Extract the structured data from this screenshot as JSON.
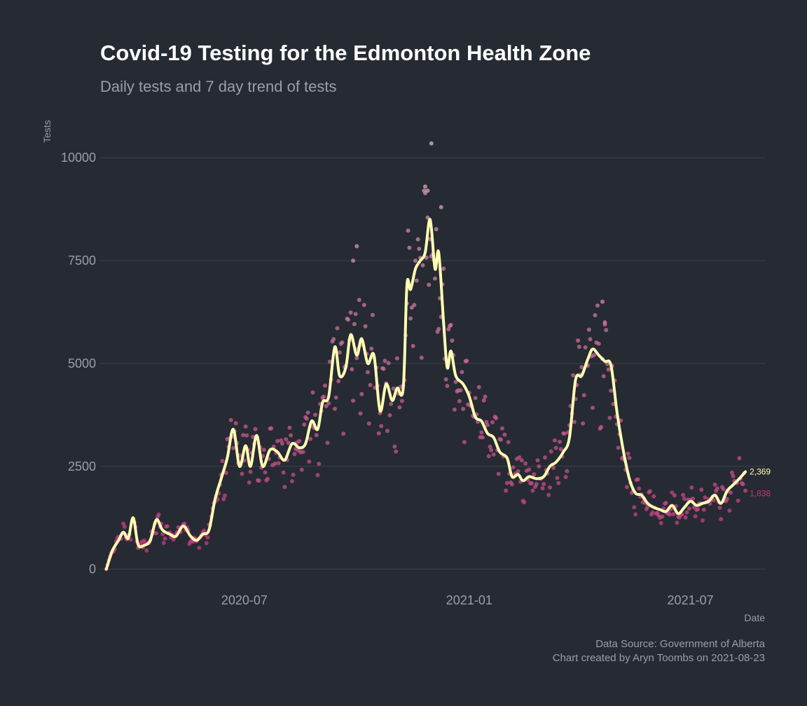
{
  "chart_data": {
    "type": "scatter",
    "title": "Covid-19 Testing for the Edmonton Health Zone",
    "subtitle": "Daily tests and 7 day trend of tests",
    "xlabel": "Date",
    "ylabel": "Tests",
    "x_range": [
      "2020-03-05",
      "2021-08-31"
    ],
    "y_range": [
      -500,
      10600
    ],
    "x_ticks": [
      "2020-07-01",
      "2021-01-01",
      "2021-07-01"
    ],
    "x_tick_labels": [
      "2020-07",
      "2021-01",
      "2021-07"
    ],
    "y_ticks": [
      0,
      2500,
      5000,
      7500,
      10000
    ],
    "y_tick_labels": [
      "0",
      "2500",
      "5000",
      "7500",
      "10000"
    ],
    "grid": "horizontal",
    "caption_lines": [
      "Data Source: Government of Alberta",
      "Chart created by Aryn Toombs on 2021-08-23"
    ],
    "colors": {
      "background": "#262a33",
      "points_low": "#c8367e",
      "points_high": "#d5a8bc",
      "trend": "#ffffb3",
      "text_muted": "#9a9ea6"
    },
    "trend_anchors": [
      [
        "2020-03-10",
        0
      ],
      [
        "2020-03-15",
        450
      ],
      [
        "2020-03-20",
        700
      ],
      [
        "2020-03-24",
        900
      ],
      [
        "2020-03-28",
        750
      ],
      [
        "2020-04-01",
        1250
      ],
      [
        "2020-04-05",
        600
      ],
      [
        "2020-04-10",
        580
      ],
      [
        "2020-04-15",
        700
      ],
      [
        "2020-04-20",
        1200
      ],
      [
        "2020-04-25",
        950
      ],
      [
        "2020-05-01",
        850
      ],
      [
        "2020-05-06",
        800
      ],
      [
        "2020-05-12",
        1050
      ],
      [
        "2020-05-18",
        800
      ],
      [
        "2020-05-23",
        700
      ],
      [
        "2020-05-28",
        850
      ],
      [
        "2020-06-02",
        950
      ],
      [
        "2020-06-07",
        1700
      ],
      [
        "2020-06-12",
        2200
      ],
      [
        "2020-06-17",
        2700
      ],
      [
        "2020-06-22",
        3400
      ],
      [
        "2020-06-27",
        2500
      ],
      [
        "2020-07-02",
        3000
      ],
      [
        "2020-07-06",
        2500
      ],
      [
        "2020-07-11",
        3250
      ],
      [
        "2020-07-16",
        2500
      ],
      [
        "2020-07-22",
        2900
      ],
      [
        "2020-07-28",
        2850
      ],
      [
        "2020-08-03",
        2650
      ],
      [
        "2020-08-09",
        3050
      ],
      [
        "2020-08-15",
        2950
      ],
      [
        "2020-08-20",
        3050
      ],
      [
        "2020-08-25",
        3600
      ],
      [
        "2020-08-30",
        3400
      ],
      [
        "2020-09-03",
        4050
      ],
      [
        "2020-09-08",
        4200
      ],
      [
        "2020-09-13",
        5400
      ],
      [
        "2020-09-17",
        4700
      ],
      [
        "2020-09-22",
        4900
      ],
      [
        "2020-09-26",
        5700
      ],
      [
        "2020-10-01",
        5200
      ],
      [
        "2020-10-05",
        5600
      ],
      [
        "2020-10-10",
        5000
      ],
      [
        "2020-10-15",
        5200
      ],
      [
        "2020-10-20",
        3850
      ],
      [
        "2020-10-25",
        4500
      ],
      [
        "2020-10-30",
        4100
      ],
      [
        "2020-11-03",
        4400
      ],
      [
        "2020-11-08",
        4400
      ],
      [
        "2020-11-11",
        6900
      ],
      [
        "2020-11-14",
        6800
      ],
      [
        "2020-11-18",
        7300
      ],
      [
        "2020-11-22",
        7500
      ],
      [
        "2020-11-26",
        7700
      ],
      [
        "2020-11-30",
        8500
      ],
      [
        "2020-12-04",
        7300
      ],
      [
        "2020-12-07",
        7700
      ],
      [
        "2020-12-11",
        6000
      ],
      [
        "2020-12-14",
        4900
      ],
      [
        "2020-12-17",
        5300
      ],
      [
        "2020-12-21",
        4700
      ],
      [
        "2020-12-27",
        4500
      ],
      [
        "2021-01-01",
        4200
      ],
      [
        "2021-01-06",
        3700
      ],
      [
        "2021-01-11",
        3600
      ],
      [
        "2021-01-16",
        3300
      ],
      [
        "2021-01-21",
        3200
      ],
      [
        "2021-01-26",
        2850
      ],
      [
        "2021-02-01",
        2700
      ],
      [
        "2021-02-05",
        2250
      ],
      [
        "2021-02-10",
        2300
      ],
      [
        "2021-02-14",
        2150
      ],
      [
        "2021-02-19",
        2250
      ],
      [
        "2021-02-25",
        2200
      ],
      [
        "2021-03-03",
        2250
      ],
      [
        "2021-03-08",
        2500
      ],
      [
        "2021-03-13",
        2600
      ],
      [
        "2021-03-19",
        2850
      ],
      [
        "2021-03-24",
        3200
      ],
      [
        "2021-03-29",
        4600
      ],
      [
        "2021-04-03",
        4700
      ],
      [
        "2021-04-08",
        5100
      ],
      [
        "2021-04-12",
        5350
      ],
      [
        "2021-04-17",
        5200
      ],
      [
        "2021-04-22",
        5050
      ],
      [
        "2021-04-27",
        4950
      ],
      [
        "2021-05-02",
        3800
      ],
      [
        "2021-05-07",
        2900
      ],
      [
        "2021-05-12",
        2200
      ],
      [
        "2021-05-17",
        1850
      ],
      [
        "2021-05-22",
        1800
      ],
      [
        "2021-05-27",
        1600
      ],
      [
        "2021-06-01",
        1500
      ],
      [
        "2021-06-06",
        1450
      ],
      [
        "2021-06-11",
        1400
      ],
      [
        "2021-06-16",
        1550
      ],
      [
        "2021-06-21",
        1350
      ],
      [
        "2021-06-26",
        1500
      ],
      [
        "2021-07-01",
        1650
      ],
      [
        "2021-07-06",
        1550
      ],
      [
        "2021-07-11",
        1600
      ],
      [
        "2021-07-16",
        1650
      ],
      [
        "2021-07-21",
        1800
      ],
      [
        "2021-07-26",
        1600
      ],
      [
        "2021-07-31",
        1900
      ],
      [
        "2021-08-05",
        2050
      ],
      [
        "2021-08-10",
        2200
      ],
      [
        "2021-08-15",
        2369
      ]
    ],
    "last_trend_value": 2369,
    "last_trend_label": "2,369",
    "last_daily_value": 1838,
    "last_daily_label": "1,838",
    "point_count": 529,
    "point_noise_amplitude": 0.18,
    "notable_points": [
      [
        "2020-12-01",
        10350
      ],
      [
        "2020-11-26",
        9300
      ],
      [
        "2020-11-28",
        9200
      ],
      [
        "2020-12-09",
        8800
      ],
      [
        "2020-10-01",
        7850
      ],
      [
        "2020-09-28",
        7500
      ],
      [
        "2021-04-20",
        6500
      ],
      [
        "2021-04-22",
        6000
      ]
    ]
  }
}
